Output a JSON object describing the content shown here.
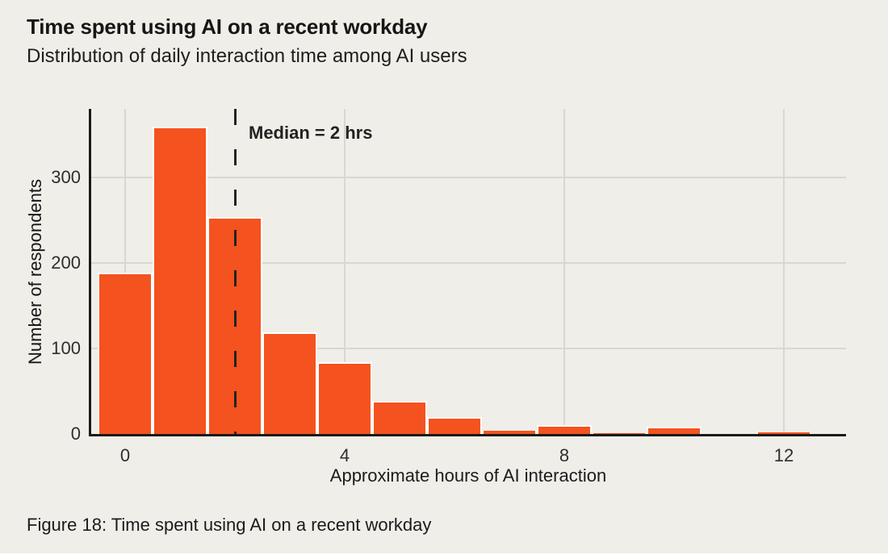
{
  "header": {
    "title": "Time spent using AI on a recent workday",
    "subtitle": "Distribution of daily interaction time among AI users"
  },
  "chart_data": {
    "type": "bar",
    "title": "Time spent using AI on a recent workday",
    "subtitle": "Distribution of daily interaction time among AI users",
    "x": [
      0,
      1,
      2,
      3,
      4,
      5,
      6,
      7,
      8,
      9,
      10,
      11,
      12
    ],
    "values": [
      190,
      360,
      255,
      120,
      85,
      40,
      21,
      5,
      11,
      2,
      9,
      0,
      3
    ],
    "xlabel": "Approximate hours of AI interaction",
    "ylabel": "Number of respondents",
    "x_ticks": [
      0,
      4,
      8,
      12
    ],
    "y_ticks": [
      0,
      100,
      200,
      300
    ],
    "ylim": [
      0,
      381
    ],
    "grid": true,
    "legend": "none",
    "annotation": {
      "label": "Median = 2 hrs",
      "x": 2
    },
    "bar_color": "#F4521F",
    "bar_edge_color": "#FFFFFF",
    "background_color": "#F0EEE9",
    "gridline_color": "#D9D7D2",
    "axis_color": "#1A1A1A"
  },
  "caption": {
    "text": "Figure 18: Time spent using AI on a recent workday"
  }
}
